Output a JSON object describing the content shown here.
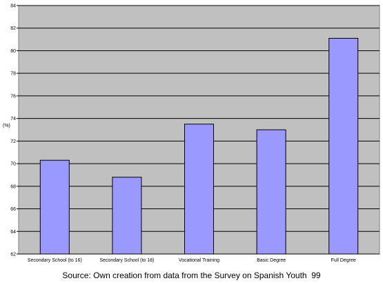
{
  "caption": "Source: Own creation from data from the Survey on Spanish Youth  99",
  "colors": {
    "plot_bg": "#c0c0c0",
    "bar": "#9999ff",
    "grid": "#000000"
  },
  "chart_data": {
    "type": "bar",
    "categories": [
      "Secondary School (to 16)",
      "Secondary School (to 18)",
      "Vocational Training",
      "Basic Degree",
      "Full Degree"
    ],
    "values": [
      70.3,
      68.8,
      73.5,
      73.0,
      81.1
    ],
    "ylabel": "(%)",
    "ylim": [
      62,
      84
    ],
    "yticks": [
      62,
      64,
      66,
      68,
      70,
      72,
      74,
      76,
      78,
      80,
      82,
      84
    ],
    "grid": true,
    "legend": "none"
  }
}
